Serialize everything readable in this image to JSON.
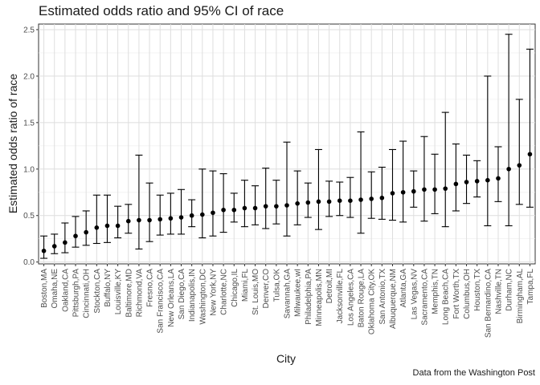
{
  "chart_data": {
    "type": "scatter",
    "title": "Estimated odds ratio and 95% CI of race",
    "xlabel": "City",
    "ylabel": "Estimated odds ratio of race",
    "caption": "Data from the Washington Post",
    "ylim": [
      -0.02,
      2.56
    ],
    "yticks": [
      0.0,
      0.5,
      1.0,
      1.5,
      2.0,
      2.5
    ],
    "ytick_labels": [
      "0.0",
      "0.5",
      "1.0",
      "1.5",
      "2.0",
      "2.5"
    ],
    "grid": true,
    "legend": "none",
    "points": [
      {
        "city": "Boston,MA",
        "estimate": 0.12,
        "lower": 0.04,
        "upper": 0.28
      },
      {
        "city": "Omaha,NE",
        "estimate": 0.17,
        "lower": 0.09,
        "upper": 0.3
      },
      {
        "city": "Oakland,CA",
        "estimate": 0.21,
        "lower": 0.1,
        "upper": 0.42
      },
      {
        "city": "Pittsburgh,PA",
        "estimate": 0.28,
        "lower": 0.16,
        "upper": 0.49
      },
      {
        "city": "Cincinnati,OH",
        "estimate": 0.32,
        "lower": 0.18,
        "upper": 0.55
      },
      {
        "city": "Stockton,CA",
        "estimate": 0.37,
        "lower": 0.2,
        "upper": 0.72
      },
      {
        "city": "Buffalo,NY",
        "estimate": 0.39,
        "lower": 0.21,
        "upper": 0.72
      },
      {
        "city": "Louisville,KY",
        "estimate": 0.39,
        "lower": 0.26,
        "upper": 0.6
      },
      {
        "city": "Baltimore,MD",
        "estimate": 0.44,
        "lower": 0.31,
        "upper": 0.62
      },
      {
        "city": "Richmond,VA",
        "estimate": 0.45,
        "lower": 0.14,
        "upper": 1.15
      },
      {
        "city": "Fresno,CA",
        "estimate": 0.45,
        "lower": 0.22,
        "upper": 0.85
      },
      {
        "city": "San Francisco,CA",
        "estimate": 0.46,
        "lower": 0.29,
        "upper": 0.72
      },
      {
        "city": "New Orleans,LA",
        "estimate": 0.47,
        "lower": 0.3,
        "upper": 0.74
      },
      {
        "city": "San Diego,CA",
        "estimate": 0.48,
        "lower": 0.3,
        "upper": 0.78
      },
      {
        "city": "Indianapolis,IN",
        "estimate": 0.5,
        "lower": 0.38,
        "upper": 0.67
      },
      {
        "city": "Washington,DC",
        "estimate": 0.51,
        "lower": 0.26,
        "upper": 1.0
      },
      {
        "city": "New York,NY",
        "estimate": 0.53,
        "lower": 0.28,
        "upper": 0.98
      },
      {
        "city": "Charlotte,NC",
        "estimate": 0.56,
        "lower": 0.32,
        "upper": 0.95
      },
      {
        "city": "Chicago,IL",
        "estimate": 0.56,
        "lower": 0.43,
        "upper": 0.74
      },
      {
        "city": "Miami,FL",
        "estimate": 0.58,
        "lower": 0.38,
        "upper": 0.88
      },
      {
        "city": "St. Louis,MO",
        "estimate": 0.58,
        "lower": 0.4,
        "upper": 0.82
      },
      {
        "city": "Denver,CO",
        "estimate": 0.6,
        "lower": 0.36,
        "upper": 1.01
      },
      {
        "city": "Tulsa,OK",
        "estimate": 0.6,
        "lower": 0.41,
        "upper": 0.88
      },
      {
        "city": "Savannah,GA",
        "estimate": 0.61,
        "lower": 0.28,
        "upper": 1.29
      },
      {
        "city": "Milwaukee,wI",
        "estimate": 0.63,
        "lower": 0.4,
        "upper": 0.98
      },
      {
        "city": "Philadelphia,PA",
        "estimate": 0.64,
        "lower": 0.48,
        "upper": 0.85
      },
      {
        "city": "Minneapolis,MN",
        "estimate": 0.65,
        "lower": 0.35,
        "upper": 1.21
      },
      {
        "city": "Detroit,MI",
        "estimate": 0.65,
        "lower": 0.49,
        "upper": 0.87
      },
      {
        "city": "Jacksonville,FL",
        "estimate": 0.66,
        "lower": 0.5,
        "upper": 0.86
      },
      {
        "city": "Los Angeles,CA",
        "estimate": 0.66,
        "lower": 0.48,
        "upper": 0.91
      },
      {
        "city": "Baton Rouge,LA",
        "estimate": 0.67,
        "lower": 0.31,
        "upper": 1.4
      },
      {
        "city": "Oklahoma City,OK",
        "estimate": 0.68,
        "lower": 0.47,
        "upper": 0.97
      },
      {
        "city": "San Antonio,TX",
        "estimate": 0.69,
        "lower": 0.46,
        "upper": 1.02
      },
      {
        "city": "Albuquerque,NM",
        "estimate": 0.74,
        "lower": 0.45,
        "upper": 1.21
      },
      {
        "city": "Atlanta,GA",
        "estimate": 0.75,
        "lower": 0.43,
        "upper": 1.3
      },
      {
        "city": "Las Vegas,NV",
        "estimate": 0.76,
        "lower": 0.59,
        "upper": 0.98
      },
      {
        "city": "Sacramento,CA",
        "estimate": 0.78,
        "lower": 0.44,
        "upper": 1.35
      },
      {
        "city": "Memphis,TN",
        "estimate": 0.78,
        "lower": 0.52,
        "upper": 1.16
      },
      {
        "city": "Long Beach,CA",
        "estimate": 0.79,
        "lower": 0.38,
        "upper": 1.61
      },
      {
        "city": "Fort Worth,TX",
        "estimate": 0.84,
        "lower": 0.55,
        "upper": 1.27
      },
      {
        "city": "Columbus,OH",
        "estimate": 0.86,
        "lower": 0.63,
        "upper": 1.15
      },
      {
        "city": "Houston,TX",
        "estimate": 0.87,
        "lower": 0.7,
        "upper": 1.09
      },
      {
        "city": "San Bernardino,CA",
        "estimate": 0.88,
        "lower": 0.39,
        "upper": 2.0
      },
      {
        "city": "Nashville,TN",
        "estimate": 0.9,
        "lower": 0.65,
        "upper": 1.24
      },
      {
        "city": "Durham,NC",
        "estimate": 1.0,
        "lower": 0.39,
        "upper": 2.45
      },
      {
        "city": "Birmingham,AL",
        "estimate": 1.04,
        "lower": 0.62,
        "upper": 1.75
      },
      {
        "city": "Tampa,FL",
        "estimate": 1.16,
        "lower": 0.59,
        "upper": 2.29
      }
    ]
  }
}
